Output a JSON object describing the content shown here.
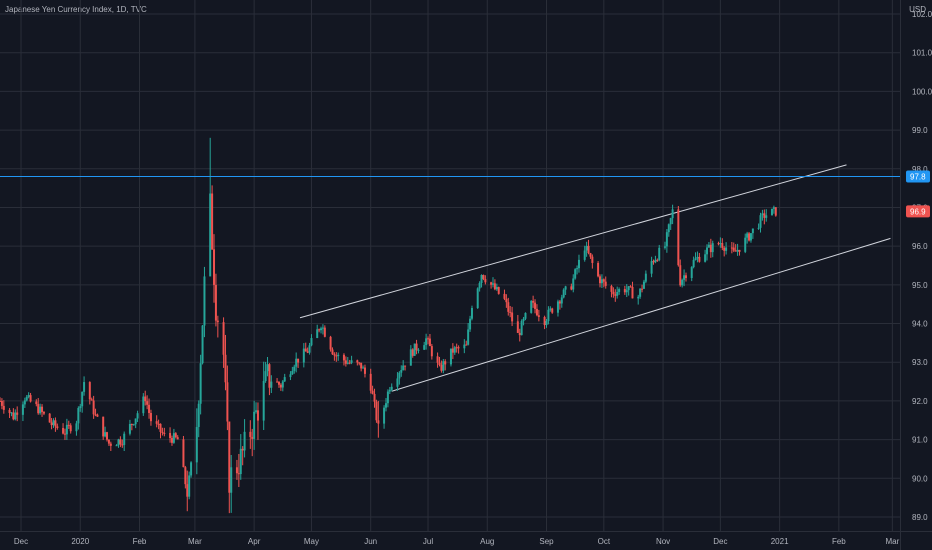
{
  "header": {
    "title": "Japanese Yen Currency Index, 1D, TVC",
    "currency": "USD"
  },
  "colors": {
    "background": "#131722",
    "grid": "#2a2e39",
    "up": "#26a69a",
    "down": "#ef5350",
    "hline": "#2196f3",
    "channel": "#d1d4dc",
    "axis_text": "#b2b5be"
  },
  "chart_data": {
    "type": "candlestick",
    "title": "Japanese Yen Currency Index, 1D, TVC",
    "y_unit": "USD",
    "ylim": [
      88.65,
      102.6
    ],
    "y_ticks": [
      89.0,
      90.0,
      91.0,
      92.0,
      93.0,
      94.0,
      95.0,
      96.0,
      97.0,
      98.0,
      99.0,
      100.0,
      101.0,
      102.0
    ],
    "x_ticks": [
      "Dec",
      "2020",
      "Feb",
      "Mar",
      "Apr",
      "May",
      "Jun",
      "Jul",
      "Aug",
      "Sep",
      "Oct",
      "Nov",
      "Dec",
      "2021",
      "Feb",
      "Mar"
    ],
    "x_range": [
      "2019-11-20",
      "2021-03-05"
    ],
    "price_levels": [
      {
        "name": "horizontal-line",
        "value": 97.8,
        "label": "97.8"
      },
      {
        "name": "last-price",
        "value": 96.9,
        "label": "96.9"
      }
    ],
    "trend_channel": {
      "upper": [
        [
          "2020-04-25",
          94.15
        ],
        [
          "2021-02-05",
          98.1
        ]
      ],
      "lower": [
        [
          "2020-06-12",
          92.25
        ],
        [
          "2021-02-28",
          96.2
        ]
      ]
    },
    "grid": true,
    "series": [
      {
        "name": "",
        "type": "candlestick",
        "ohlc_knots": [
          [
            "2019-11-20",
            92.0
          ],
          [
            "2019-11-27",
            91.6
          ],
          [
            "2019-12-03",
            92.1
          ],
          [
            "2019-12-10",
            91.8
          ],
          [
            "2019-12-17",
            91.4
          ],
          [
            "2019-12-24",
            91.2
          ],
          [
            "2019-12-30",
            91.5
          ],
          [
            "2020-01-03",
            92.5
          ],
          [
            "2020-01-09",
            91.6
          ],
          [
            "2020-01-16",
            90.9
          ],
          [
            "2020-01-23",
            91.0
          ],
          [
            "2020-01-30",
            91.6
          ],
          [
            "2020-02-04",
            92.1
          ],
          [
            "2020-02-07",
            91.5
          ],
          [
            "2020-02-14",
            91.1
          ],
          [
            "2020-02-21",
            91.0
          ],
          [
            "2020-02-26",
            89.6
          ],
          [
            "2020-03-02",
            91.4
          ],
          [
            "2020-03-06",
            95.0
          ],
          [
            "2020-03-09",
            97.0
          ],
          [
            "2020-03-12",
            94.5
          ],
          [
            "2020-03-16",
            93.2
          ],
          [
            "2020-03-19",
            90.0
          ],
          [
            "2020-03-25",
            90.5
          ],
          [
            "2020-04-01",
            91.5
          ],
          [
            "2020-04-08",
            92.6
          ],
          [
            "2020-04-15",
            92.4
          ],
          [
            "2020-04-22",
            93.0
          ],
          [
            "2020-04-29",
            93.3
          ],
          [
            "2020-05-06",
            94.0
          ],
          [
            "2020-05-13",
            93.2
          ],
          [
            "2020-05-20",
            93.0
          ],
          [
            "2020-05-27",
            92.9
          ],
          [
            "2020-06-01",
            92.4
          ],
          [
            "2020-06-05",
            91.3
          ],
          [
            "2020-06-11",
            92.4
          ],
          [
            "2020-06-16",
            92.8
          ],
          [
            "2020-06-23",
            93.3
          ],
          [
            "2020-06-30",
            93.6
          ],
          [
            "2020-07-07",
            92.8
          ],
          [
            "2020-07-14",
            93.3
          ],
          [
            "2020-07-21",
            93.4
          ],
          [
            "2020-07-24",
            94.5
          ],
          [
            "2020-07-29",
            95.3
          ],
          [
            "2020-08-03",
            95.0
          ],
          [
            "2020-08-10",
            94.6
          ],
          [
            "2020-08-17",
            93.7
          ],
          [
            "2020-08-24",
            94.5
          ],
          [
            "2020-08-31",
            94.1
          ],
          [
            "2020-09-07",
            94.6
          ],
          [
            "2020-09-14",
            95.0
          ],
          [
            "2020-09-21",
            96.0
          ],
          [
            "2020-09-28",
            95.2
          ],
          [
            "2020-10-05",
            94.8
          ],
          [
            "2020-10-12",
            94.9
          ],
          [
            "2020-10-19",
            94.7
          ],
          [
            "2020-10-26",
            95.6
          ],
          [
            "2020-11-02",
            96.0
          ],
          [
            "2020-11-06",
            96.9
          ],
          [
            "2020-11-10",
            95.1
          ],
          [
            "2020-11-17",
            95.6
          ],
          [
            "2020-11-24",
            95.9
          ],
          [
            "2020-12-01",
            96.1
          ],
          [
            "2020-12-08",
            95.8
          ],
          [
            "2020-12-15",
            96.2
          ],
          [
            "2020-12-21",
            96.6
          ],
          [
            "2020-12-24",
            96.8
          ],
          [
            "2020-12-30",
            96.9
          ]
        ],
        "notable_bars": [
          {
            "date": "2020-03-09",
            "high": 98.8,
            "low": 97.3
          },
          {
            "date": "2020-02-26",
            "high": 90.2,
            "low": 89.15
          },
          {
            "date": "2020-03-19",
            "high": 91.0,
            "low": 89.1
          },
          {
            "date": "2020-06-05",
            "high": 92.0,
            "low": 91.05
          }
        ]
      }
    ]
  }
}
